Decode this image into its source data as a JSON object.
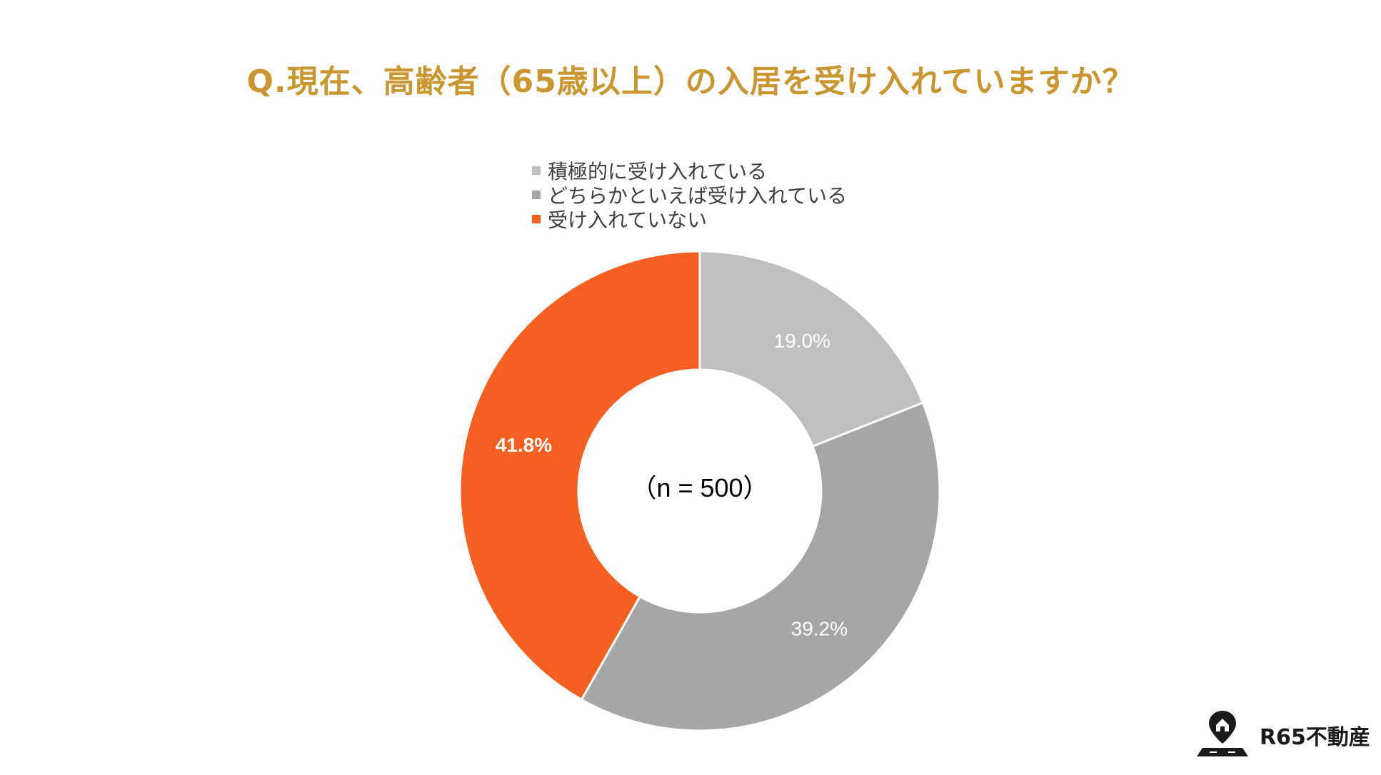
{
  "chart_data": {
    "type": "pie",
    "subtype": "donut",
    "title": "Q.現在、高齢者（65歳以上）の入居を受け入れていますか？",
    "center_label": "（n = 500）",
    "legend_position": "top",
    "series": [
      {
        "name": "積極的に受け入れている",
        "value": 19.0,
        "label": "19.0%",
        "color": "#bfbfbf",
        "label_color": "#ffffff",
        "label_bold": false
      },
      {
        "name": "どちらかといえば受け入れている",
        "value": 39.2,
        "label": "39.2%",
        "color": "#a6a6a6",
        "label_color": "#ffffff",
        "label_bold": false
      },
      {
        "name": "受け入れていない",
        "value": 41.8,
        "label": "41.8%",
        "color": "#f55f22",
        "label_color": "#ffffff",
        "label_bold": true
      }
    ]
  },
  "colors": {
    "title": "#c9962f",
    "center_text": "#000000",
    "slice_border": "#ffffff"
  },
  "brand": {
    "name": "R65不動産",
    "icon": "map-pin-house-icon"
  }
}
